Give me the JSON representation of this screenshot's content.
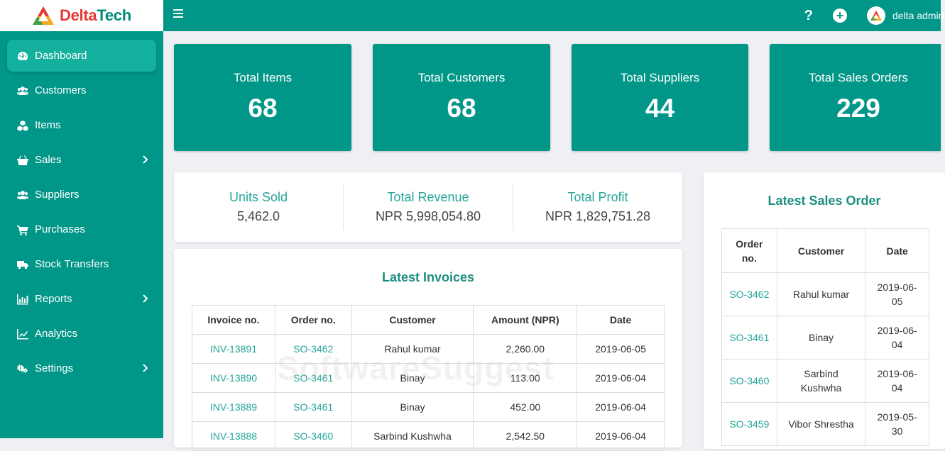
{
  "brand": {
    "name_prefix": "Delta",
    "name_suffix": "Tech"
  },
  "topbar": {
    "help": "?",
    "add": "+",
    "user_name": "delta admin"
  },
  "sidebar": {
    "items": [
      {
        "label": "Dashboard",
        "icon": "dashboard-icon"
      },
      {
        "label": "Customers",
        "icon": "users-icon"
      },
      {
        "label": "Items",
        "icon": "cubes-icon"
      },
      {
        "label": "Sales",
        "icon": "basket-icon"
      },
      {
        "label": "Suppliers",
        "icon": "users-icon"
      },
      {
        "label": "Purchases",
        "icon": "cart-icon"
      },
      {
        "label": "Stock Transfers",
        "icon": "truck-icon"
      },
      {
        "label": "Reports",
        "icon": "bar-chart-icon"
      },
      {
        "label": "Analytics",
        "icon": "line-chart-icon"
      },
      {
        "label": "Settings",
        "icon": "gears-icon"
      }
    ]
  },
  "stats": [
    {
      "label": "Total Items",
      "value": "68"
    },
    {
      "label": "Total Customers",
      "value": "68"
    },
    {
      "label": "Total Suppliers",
      "value": "44"
    },
    {
      "label": "Total Sales Orders",
      "value": "229"
    }
  ],
  "summary": [
    {
      "label": "Units Sold",
      "value": "5,462.0"
    },
    {
      "label": "Total Revenue",
      "value": "NPR 5,998,054.80"
    },
    {
      "label": "Total Profit",
      "value": "NPR 1,829,751.28"
    }
  ],
  "invoices": {
    "title": "Latest Invoices",
    "headers": [
      "Invoice no.",
      "Order no.",
      "Customer",
      "Amount (NPR)",
      "Date"
    ],
    "rows": [
      [
        "INV-13891",
        "SO-3462",
        "Rahul kumar",
        "2,260.00",
        "2019-06-05"
      ],
      [
        "INV-13890",
        "SO-3461",
        "Binay",
        "113.00",
        "2019-06-04"
      ],
      [
        "INV-13889",
        "SO-3461",
        "Binay",
        "452.00",
        "2019-06-04"
      ],
      [
        "INV-13888",
        "SO-3460",
        "Sarbind Kushwha",
        "2,542.50",
        "2019-06-04"
      ]
    ]
  },
  "sales_orders": {
    "title": "Latest Sales Order",
    "headers": [
      "Order no.",
      "Customer",
      "Date"
    ],
    "rows": [
      [
        "SO-3462",
        "Rahul kumar",
        "2019-06-05"
      ],
      [
        "SO-3461",
        "Binay",
        "2019-06-04"
      ],
      [
        "SO-3460",
        "Sarbind Kushwha",
        "2019-06-04"
      ],
      [
        "SO-3459",
        "Vibor Shrestha",
        "2019-05-30"
      ]
    ]
  },
  "watermark": "SoftwareSuggest"
}
